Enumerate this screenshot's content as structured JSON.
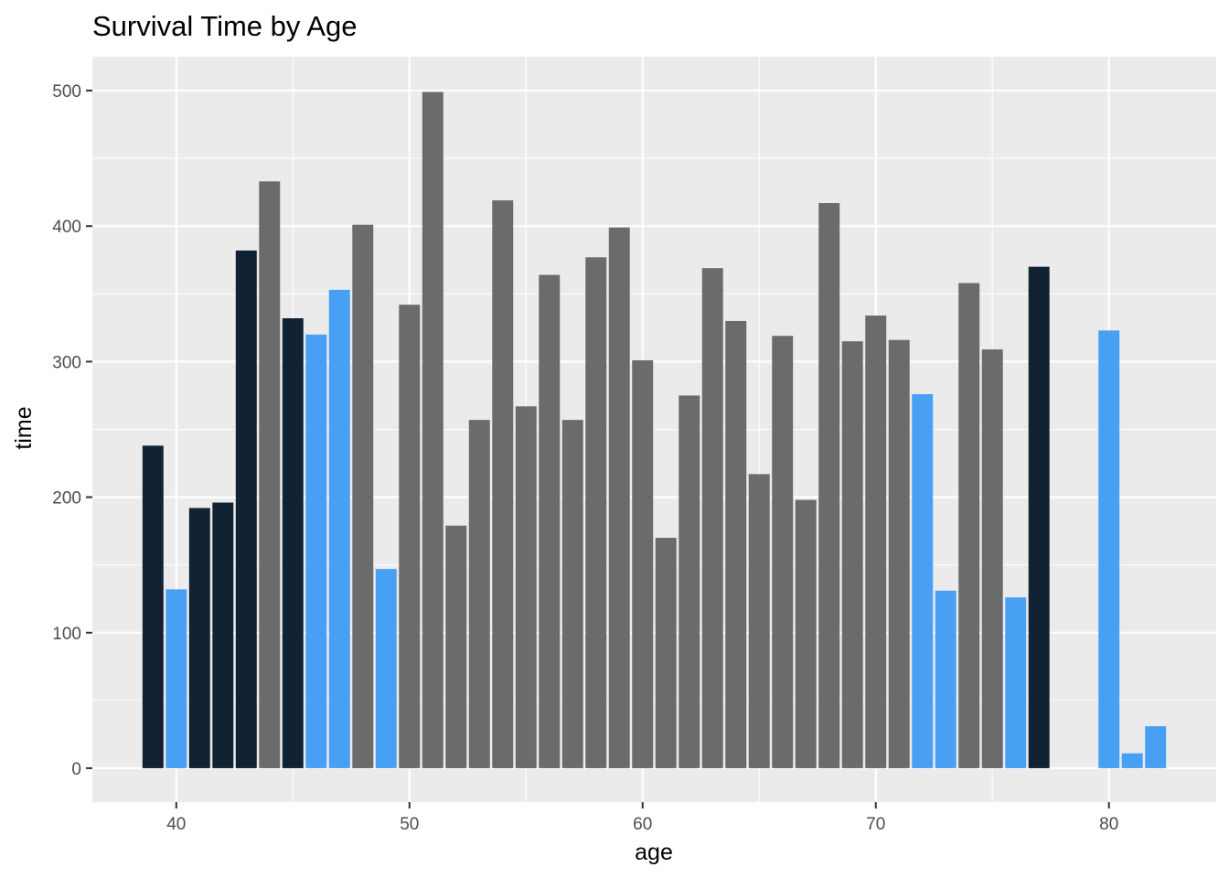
{
  "chart_data": {
    "type": "bar",
    "title": "Survival Time by Age",
    "xlabel": "age",
    "ylabel": "time",
    "xlim": [
      36.4,
      84.6
    ],
    "ylim": [
      -25,
      525
    ],
    "x_ticks": [
      40,
      50,
      60,
      70,
      80
    ],
    "y_ticks": [
      0,
      100,
      200,
      300,
      400,
      500
    ],
    "grid": true,
    "legend": "none",
    "colors": {
      "dark": "#112233",
      "light": "#48A0F5",
      "gray": "#6B6B6B"
    },
    "points": [
      {
        "x": 39,
        "y": 238,
        "c": "dark"
      },
      {
        "x": 40,
        "y": 132,
        "c": "light"
      },
      {
        "x": 41,
        "y": 192,
        "c": "dark"
      },
      {
        "x": 42,
        "y": 196,
        "c": "dark"
      },
      {
        "x": 43,
        "y": 382,
        "c": "dark"
      },
      {
        "x": 44,
        "y": 433,
        "c": "gray"
      },
      {
        "x": 45,
        "y": 332,
        "c": "dark"
      },
      {
        "x": 46,
        "y": 320,
        "c": "light"
      },
      {
        "x": 47,
        "y": 353,
        "c": "light"
      },
      {
        "x": 48,
        "y": 401,
        "c": "gray"
      },
      {
        "x": 49,
        "y": 147,
        "c": "light"
      },
      {
        "x": 50,
        "y": 342,
        "c": "gray"
      },
      {
        "x": 51,
        "y": 499,
        "c": "gray"
      },
      {
        "x": 52,
        "y": 179,
        "c": "gray"
      },
      {
        "x": 53,
        "y": 257,
        "c": "gray"
      },
      {
        "x": 54,
        "y": 419,
        "c": "gray"
      },
      {
        "x": 55,
        "y": 267,
        "c": "gray"
      },
      {
        "x": 56,
        "y": 364,
        "c": "gray"
      },
      {
        "x": 57,
        "y": 257,
        "c": "gray"
      },
      {
        "x": 58,
        "y": 377,
        "c": "gray"
      },
      {
        "x": 59,
        "y": 399,
        "c": "gray"
      },
      {
        "x": 60,
        "y": 301,
        "c": "gray"
      },
      {
        "x": 61,
        "y": 170,
        "c": "gray"
      },
      {
        "x": 62,
        "y": 275,
        "c": "gray"
      },
      {
        "x": 63,
        "y": 369,
        "c": "gray"
      },
      {
        "x": 64,
        "y": 330,
        "c": "gray"
      },
      {
        "x": 65,
        "y": 217,
        "c": "gray"
      },
      {
        "x": 66,
        "y": 319,
        "c": "gray"
      },
      {
        "x": 67,
        "y": 198,
        "c": "gray"
      },
      {
        "x": 68,
        "y": 417,
        "c": "gray"
      },
      {
        "x": 69,
        "y": 315,
        "c": "gray"
      },
      {
        "x": 70,
        "y": 334,
        "c": "gray"
      },
      {
        "x": 71,
        "y": 316,
        "c": "gray"
      },
      {
        "x": 72,
        "y": 276,
        "c": "light"
      },
      {
        "x": 73,
        "y": 131,
        "c": "light"
      },
      {
        "x": 74,
        "y": 358,
        "c": "gray"
      },
      {
        "x": 75,
        "y": 309,
        "c": "gray"
      },
      {
        "x": 76,
        "y": 126,
        "c": "light"
      },
      {
        "x": 77,
        "y": 370,
        "c": "dark"
      },
      {
        "x": 80,
        "y": 323,
        "c": "light"
      },
      {
        "x": 81,
        "y": 11,
        "c": "light"
      },
      {
        "x": 82,
        "y": 31,
        "c": "light"
      }
    ]
  }
}
